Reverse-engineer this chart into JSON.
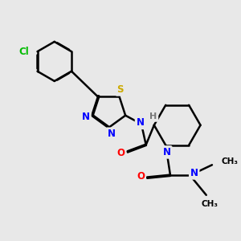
{
  "bg_color": "#e8e8e8",
  "atom_colors": {
    "C": "#000000",
    "N": "#0000ff",
    "O": "#ff0000",
    "S": "#ccaa00",
    "Cl": "#00bb00",
    "H": "#777777"
  },
  "bond_color": "#000000",
  "bond_width": 1.8,
  "dbo": 0.018,
  "figsize": [
    3.0,
    3.0
  ],
  "dpi": 100
}
